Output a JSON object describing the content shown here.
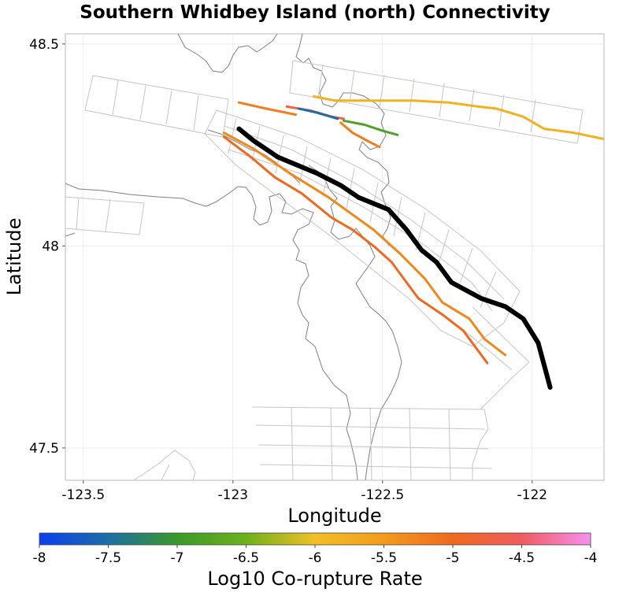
{
  "title": "Southern Whidbey Island (north) Connectivity",
  "axes": {
    "xlabel": "Longitude",
    "ylabel": "Latitude",
    "xlim": [
      -123.56,
      -121.76
    ],
    "ylim": [
      47.42,
      48.525
    ],
    "xticks": [
      -123.5,
      -123,
      -122.5,
      -122
    ],
    "xtick_labels": [
      "-123.5",
      "-123",
      "-122.5",
      "-122"
    ],
    "yticks": [
      47.5,
      48,
      48.5
    ],
    "ytick_labels": [
      "47.5",
      "48",
      "48.5"
    ]
  },
  "colorbar": {
    "label": "Log10 Co-rupture Rate",
    "min": -8,
    "max": -4,
    "ticks": [
      -8,
      -7.5,
      -7,
      -6.5,
      -6,
      -5.5,
      -5,
      -4.5,
      -4
    ],
    "tick_labels": [
      "-8",
      "-7.5",
      "-7",
      "-6.5",
      "-6",
      "-5.5",
      "-5",
      "-4.5",
      "-4"
    ],
    "stops": [
      {
        "v": -8,
        "color": "#0a3ff0"
      },
      {
        "v": -7.5,
        "color": "#1d6ea5"
      },
      {
        "v": -7,
        "color": "#3a9a2a"
      },
      {
        "v": -6.5,
        "color": "#6db11a"
      },
      {
        "v": -6,
        "color": "#f2c025"
      },
      {
        "v": -5.5,
        "color": "#f49a1c"
      },
      {
        "v": -5,
        "color": "#ef6a1e"
      },
      {
        "v": -4.5,
        "color": "#f05c60"
      },
      {
        "v": -4,
        "color": "#f88ff0"
      }
    ]
  },
  "chart_data": {
    "type": "map",
    "title": "Southern Whidbey Island (north) Connectivity",
    "xlabel": "Longitude",
    "ylabel": "Latitude",
    "target_fault": {
      "name": "Southern Whidbey Island (north)",
      "color": "#000000",
      "trace": [
        [
          -122.98,
          48.29
        ],
        [
          -122.93,
          48.26
        ],
        [
          -122.85,
          48.22
        ],
        [
          -122.72,
          48.18
        ],
        [
          -122.64,
          48.15
        ],
        [
          -122.58,
          48.12
        ],
        [
          -122.48,
          48.09
        ],
        [
          -122.42,
          48.04
        ],
        [
          -122.37,
          47.99
        ],
        [
          -122.32,
          47.96
        ],
        [
          -122.27,
          47.91
        ],
        [
          -122.17,
          47.87
        ],
        [
          -122.09,
          47.85
        ],
        [
          -122.03,
          47.82
        ],
        [
          -121.98,
          47.76
        ],
        [
          -121.94,
          47.65
        ]
      ]
    },
    "coruptures": [
      {
        "log10_rate": -5.8,
        "trace": [
          [
            -122.73,
            48.37
          ],
          [
            -122.66,
            48.36
          ],
          [
            -122.55,
            48.36
          ],
          [
            -122.4,
            48.36
          ],
          [
            -122.28,
            48.355
          ],
          [
            -122.18,
            48.345
          ],
          [
            -122.12,
            48.34
          ],
          [
            -122.03,
            48.32
          ],
          [
            -121.96,
            48.29
          ],
          [
            -121.86,
            48.28
          ],
          [
            -121.73,
            48.26
          ]
        ]
      },
      {
        "log10_rate": -5.2,
        "trace": [
          [
            -122.98,
            48.355
          ],
          [
            -122.89,
            48.34
          ],
          [
            -122.79,
            48.325
          ]
        ]
      },
      {
        "log10_rate": -4.7,
        "trace": [
          [
            -122.82,
            48.345
          ],
          [
            -122.74,
            48.335
          ],
          [
            -122.67,
            48.32
          ],
          [
            -122.63,
            48.315
          ]
        ]
      },
      {
        "log10_rate": -7.5,
        "trace": [
          [
            -122.78,
            48.34
          ],
          [
            -122.72,
            48.33
          ],
          [
            -122.65,
            48.315
          ]
        ]
      },
      {
        "log10_rate": -6.8,
        "trace": [
          [
            -122.63,
            48.31
          ],
          [
            -122.56,
            48.3
          ],
          [
            -122.5,
            48.285
          ],
          [
            -122.45,
            48.275
          ]
        ]
      },
      {
        "log10_rate": -5.2,
        "trace": [
          [
            -122.64,
            48.305
          ],
          [
            -122.6,
            48.28
          ],
          [
            -122.55,
            48.26
          ],
          [
            -122.51,
            48.245
          ]
        ]
      },
      {
        "log10_rate": -5.3,
        "trace": [
          [
            -123.03,
            48.28
          ],
          [
            -122.93,
            48.24
          ],
          [
            -122.81,
            48.18
          ],
          [
            -122.68,
            48.12
          ],
          [
            -122.53,
            48.04
          ],
          [
            -122.44,
            47.98
          ],
          [
            -122.36,
            47.92
          ],
          [
            -122.3,
            47.86
          ],
          [
            -122.21,
            47.82
          ],
          [
            -122.16,
            47.77
          ],
          [
            -122.09,
            47.73
          ]
        ]
      },
      {
        "log10_rate": -5.0,
        "trace": [
          [
            -123.03,
            48.27
          ],
          [
            -122.94,
            48.22
          ],
          [
            -122.86,
            48.17
          ],
          [
            -122.77,
            48.13
          ],
          [
            -122.67,
            48.07
          ],
          [
            -122.6,
            48.04
          ],
          [
            -122.53,
            48.0
          ],
          [
            -122.47,
            47.96
          ],
          [
            -122.42,
            47.91
          ],
          [
            -122.38,
            47.87
          ],
          [
            -122.3,
            47.83
          ],
          [
            -122.23,
            47.79
          ],
          [
            -122.15,
            47.71
          ]
        ]
      }
    ]
  }
}
